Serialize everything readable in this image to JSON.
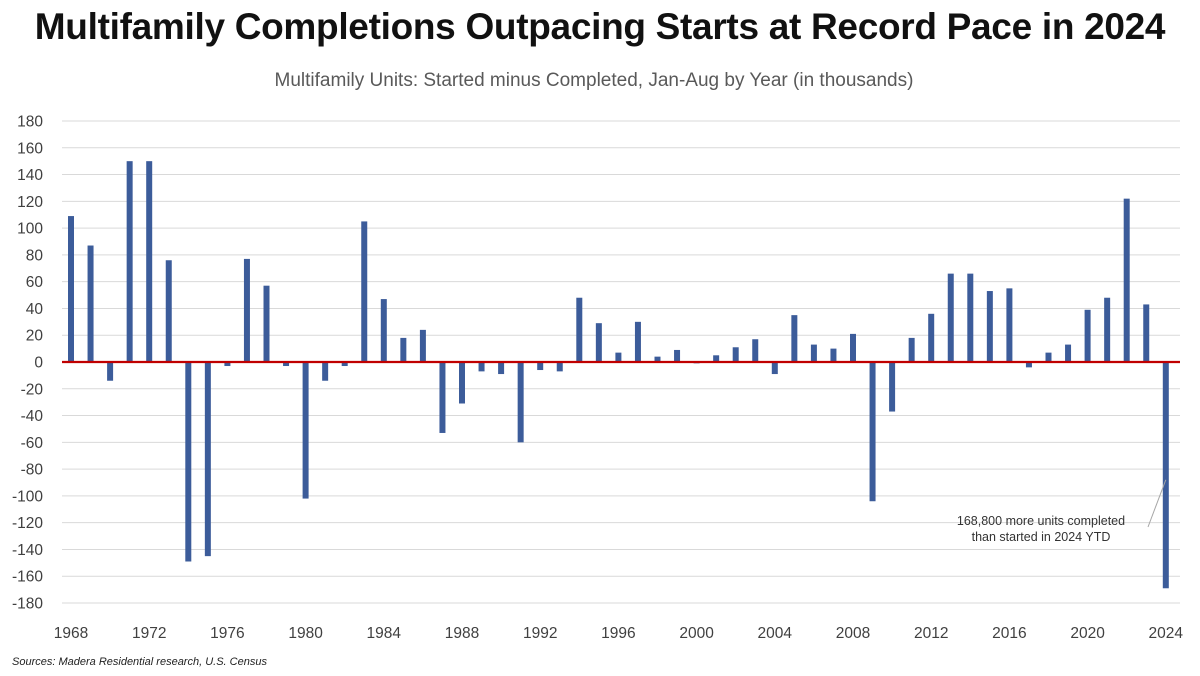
{
  "chart_data": {
    "type": "bar",
    "title": "Multifamily Completions Outpacing Starts at Record Pace in 2024",
    "subtitle": "Multifamily Units: Started minus Completed, Jan-Aug by Year (in thousands)",
    "source": "Sources: Madera Residential research, U.S. Census",
    "ylim": [
      -180,
      180
    ],
    "y_ticks": [
      180,
      160,
      140,
      120,
      100,
      80,
      60,
      40,
      20,
      0,
      -20,
      -40,
      -60,
      -80,
      -100,
      -120,
      -140,
      -160,
      -180
    ],
    "x_tick_labels": [
      "1968",
      "1972",
      "1976",
      "1980",
      "1984",
      "1988",
      "1992",
      "1996",
      "2000",
      "2004",
      "2008",
      "2012",
      "2016",
      "2020",
      "2024"
    ],
    "grid": true,
    "legend": "none",
    "colors": {
      "bar": "#3C5C9A",
      "zero_line": "#C00000",
      "grid": "#D9D9D9"
    },
    "categories": [
      1968,
      1969,
      1970,
      1971,
      1972,
      1973,
      1974,
      1975,
      1976,
      1977,
      1978,
      1979,
      1980,
      1981,
      1982,
      1983,
      1984,
      1985,
      1986,
      1987,
      1988,
      1989,
      1990,
      1991,
      1992,
      1993,
      1994,
      1995,
      1996,
      1997,
      1998,
      1999,
      2000,
      2001,
      2002,
      2003,
      2004,
      2005,
      2006,
      2007,
      2008,
      2009,
      2010,
      2011,
      2012,
      2013,
      2014,
      2015,
      2016,
      2017,
      2018,
      2019,
      2020,
      2021,
      2022,
      2023,
      2024
    ],
    "values": [
      109,
      87,
      -14,
      150,
      150,
      76,
      -149,
      -145,
      -3,
      77,
      57,
      -3,
      -102,
      -14,
      -3,
      105,
      47,
      18,
      24,
      -53,
      -31,
      -7,
      -9,
      -60,
      -6,
      -7,
      48,
      29,
      7,
      30,
      4,
      9,
      -1,
      5,
      11,
      17,
      -9,
      35,
      13,
      10,
      21,
      -104,
      -37,
      18,
      36,
      66,
      66,
      53,
      55,
      -4,
      7,
      13,
      39,
      48,
      122,
      43,
      -169
    ],
    "annotations": [
      {
        "text_lines": [
          "168,800 more units completed",
          "than started in 2024 YTD"
        ],
        "target": 2024
      }
    ]
  }
}
